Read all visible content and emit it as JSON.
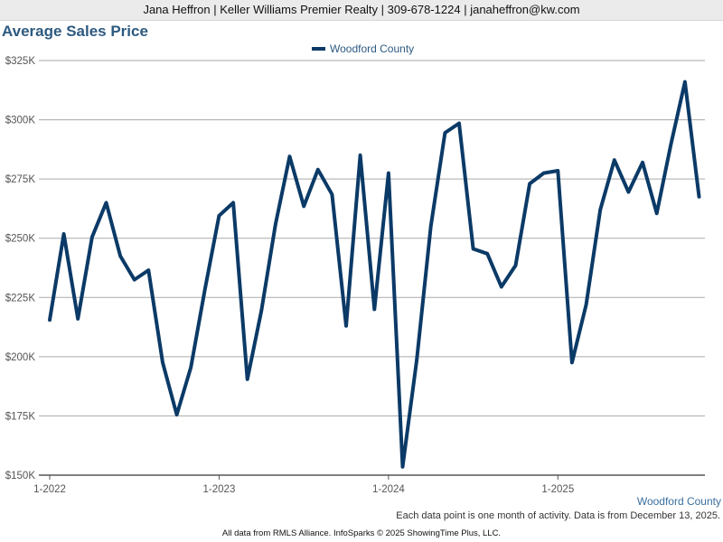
{
  "header": {
    "contact_line": "Jana Heffron | Keller Williams Premier Realty | 309-678-1224 | janaheffron@kw.com"
  },
  "colors": {
    "series": "#0b3a67",
    "grid": "#aaaaaa",
    "axis": "#555555",
    "tick_label": "#555555",
    "title": "#2d5a80"
  },
  "chart_data": {
    "type": "line",
    "title": "Average Sales Price",
    "ylim": [
      150000,
      325000
    ],
    "yticks": [
      150000,
      175000,
      200000,
      225000,
      250000,
      275000,
      300000,
      325000
    ],
    "ytick_labels": [
      "$150K",
      "$175K",
      "$200K",
      "$225K",
      "$250K",
      "$275K",
      "$300K",
      "$325K"
    ],
    "xtick_labels": [
      "1-2022",
      "1-2023",
      "1-2024",
      "1-2025"
    ],
    "xtick_indices": [
      0,
      12,
      24,
      36
    ],
    "grid": true,
    "legend_position": "top-center",
    "series": [
      {
        "name": "Woodford County",
        "values": [
          215500,
          251800,
          216000,
          250500,
          265000,
          242500,
          232500,
          236500,
          197500,
          175500,
          195500,
          228500,
          259500,
          265000,
          190500,
          219500,
          256000,
          284500,
          263500,
          279000,
          268500,
          213000,
          285000,
          220000,
          277500,
          153500,
          198500,
          255000,
          294500,
          298500,
          245500,
          243500,
          229500,
          238500,
          273000,
          277500,
          278500,
          197500,
          222000,
          262000,
          283000,
          269500,
          282000,
          260500,
          289500,
          316000,
          267500
        ]
      }
    ],
    "end_label": "Woodford County"
  },
  "footer": {
    "note": "Each data point is one month of activity. Data is from December 13, 2025.",
    "credit": "All data from RMLS Alliance. InfoSparks © 2025 ShowingTime Plus, LLC."
  }
}
